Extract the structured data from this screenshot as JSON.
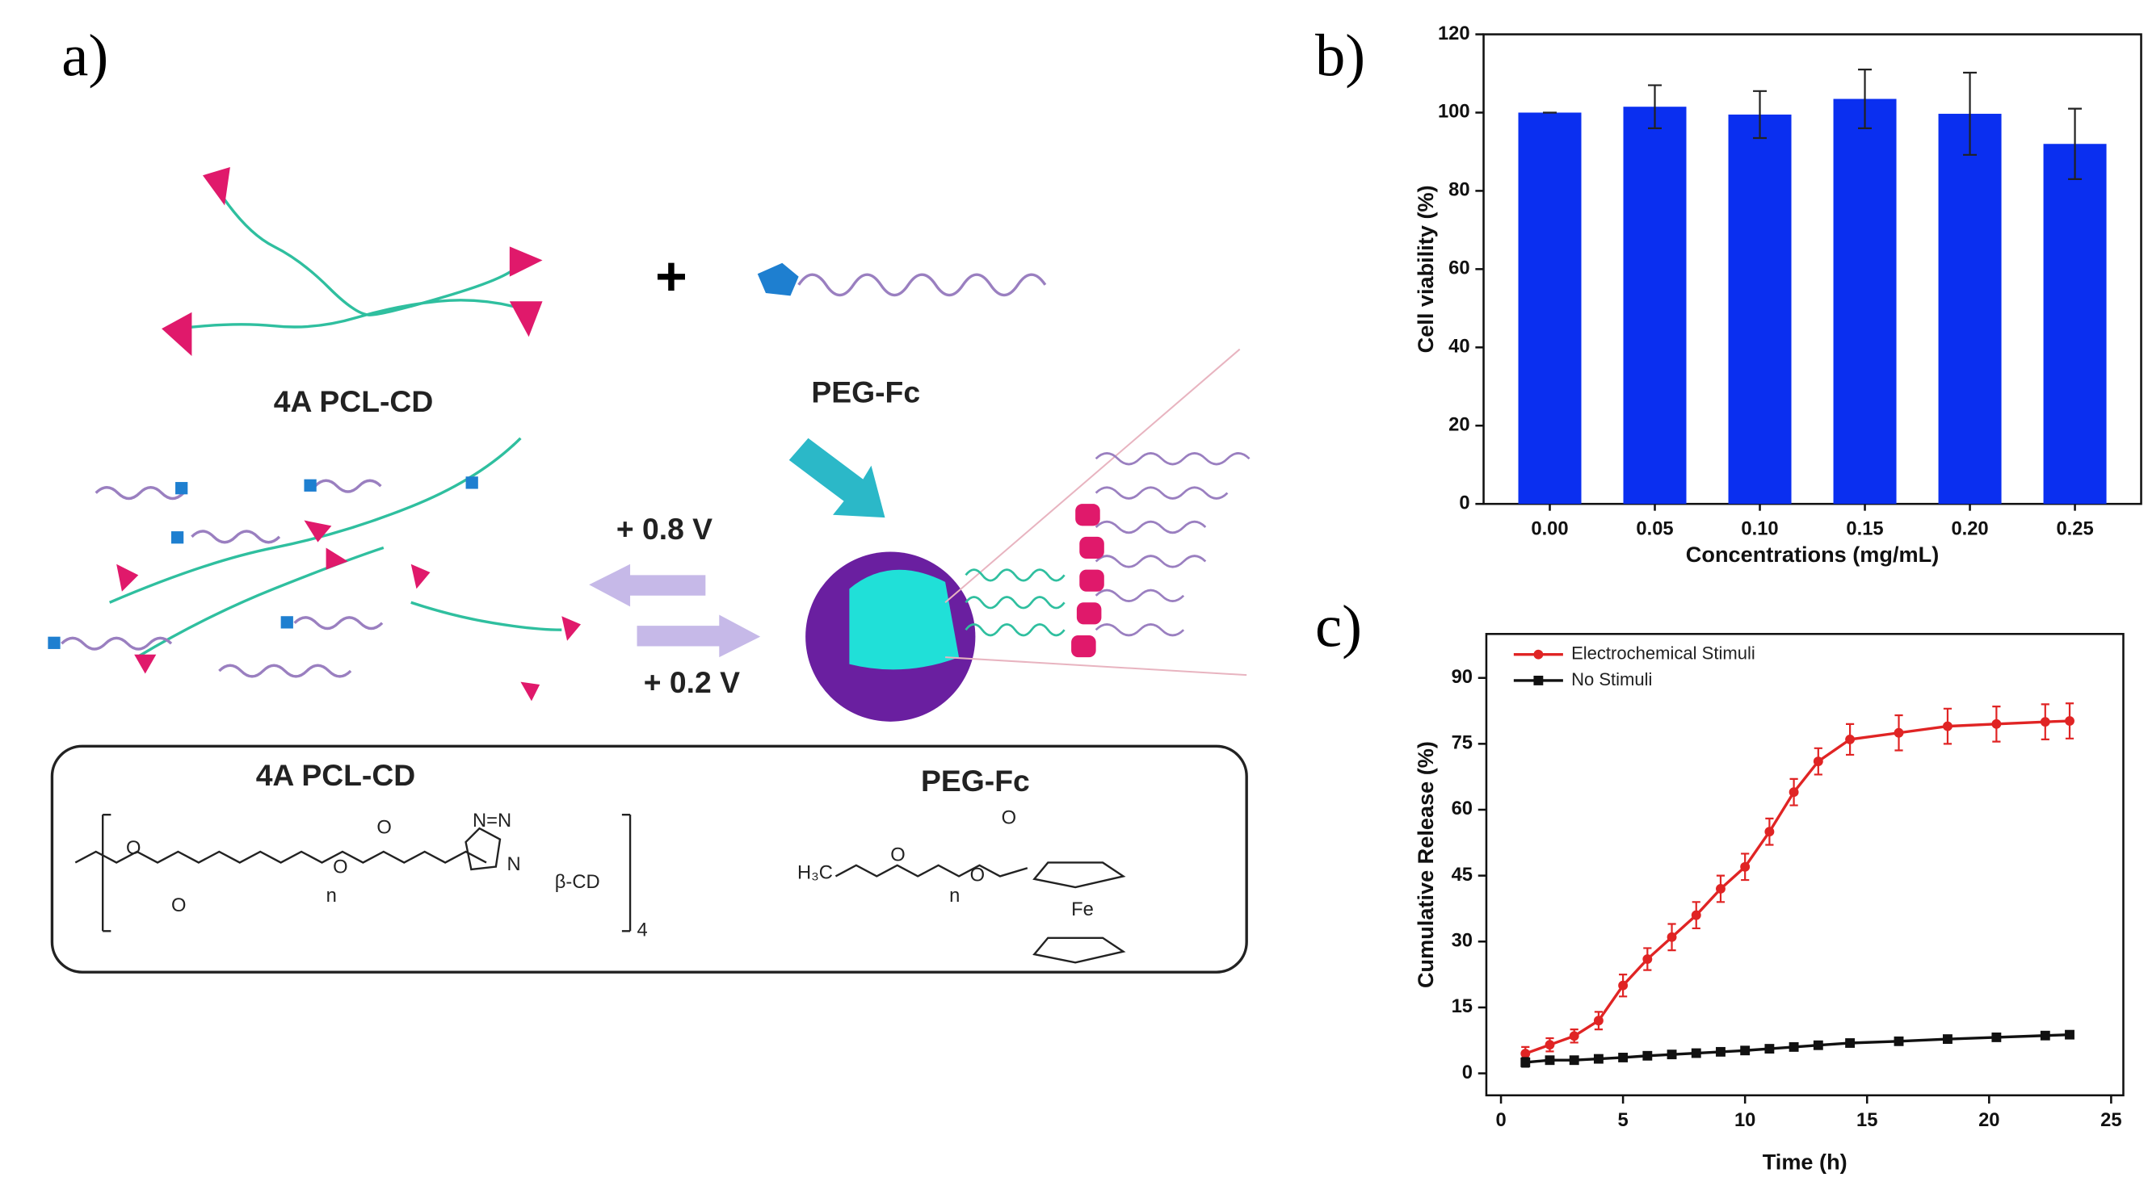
{
  "schematic": {
    "panel_label": "a)",
    "top_left_label": "4A PCL-CD",
    "top_right_label": "PEG-Fc",
    "plus": "+",
    "oxidation": "+ 0.8 V",
    "reduction": "+ 0.2 V",
    "box_left_title": "4A PCL-CD",
    "box_right_title": "PEG-Fc",
    "formula_labels": [
      "O",
      "O",
      "O",
      "O",
      "N=N",
      "N",
      "β-CD",
      "n",
      "4",
      "H₃C",
      "O",
      "n",
      "O",
      "O",
      "Fe"
    ]
  },
  "chart_data": [
    {
      "type": "bar",
      "panel_label": "b)",
      "x_label": "Concentrations (mg/mL)",
      "y_label": "Cell viability (%)",
      "categories": [
        "0.00",
        "0.05",
        "0.10",
        "0.15",
        "0.20",
        "0.25"
      ],
      "values": [
        100,
        101.5,
        99.5,
        103.5,
        99.7,
        92
      ],
      "errors": [
        0,
        5.5,
        6,
        7.5,
        10.5,
        9
      ],
      "color": "#0a2ff0",
      "ylim": [
        0,
        120
      ],
      "yticks": [
        0,
        20,
        40,
        60,
        80,
        100,
        120
      ]
    },
    {
      "type": "line",
      "panel_label": "c)",
      "x_label": "Time (h)",
      "y_label": "Cumulative Release (%)",
      "x": [
        1,
        2,
        3,
        4,
        5,
        6,
        7,
        8,
        9,
        10,
        11,
        12,
        13,
        14.3,
        16.3,
        18.3,
        20.3,
        22.3,
        23.3
      ],
      "series": [
        {
          "name": "Electrochemical Stimuli",
          "color": "#e02424",
          "values": [
            4.5,
            6.5,
            8.5,
            12,
            20,
            26,
            31,
            36,
            42,
            47,
            55,
            64,
            71,
            76,
            77.5,
            79,
            79.5,
            80,
            80.2
          ],
          "errors": [
            1.5,
            1.5,
            1.5,
            2,
            2.5,
            2.5,
            3,
            3,
            3,
            3,
            3,
            3,
            3,
            3.5,
            4,
            4,
            4,
            4,
            4
          ]
        },
        {
          "name": "No Stimuli",
          "color": "#111111",
          "values": [
            2.5,
            3,
            3,
            3.3,
            3.6,
            4,
            4.3,
            4.6,
            4.9,
            5.2,
            5.6,
            6,
            6.4,
            6.9,
            7.3,
            7.8,
            8.2,
            8.6,
            8.8
          ],
          "errors": [
            1,
            0.8,
            0.8,
            0.8,
            0.8,
            0.8,
            0.8,
            0.8,
            0.8,
            0.8,
            0.8,
            0.8,
            0.8,
            0.8,
            0.8,
            0.8,
            0.8,
            0.8,
            0.8
          ]
        }
      ],
      "xlim": [
        -0.6,
        25.5
      ],
      "xticks": [
        0,
        5,
        10,
        15,
        20,
        25
      ],
      "ylim": [
        -5,
        100
      ],
      "yticks": [
        0,
        15,
        30,
        45,
        60,
        75,
        90
      ],
      "legend": "upper left"
    }
  ]
}
